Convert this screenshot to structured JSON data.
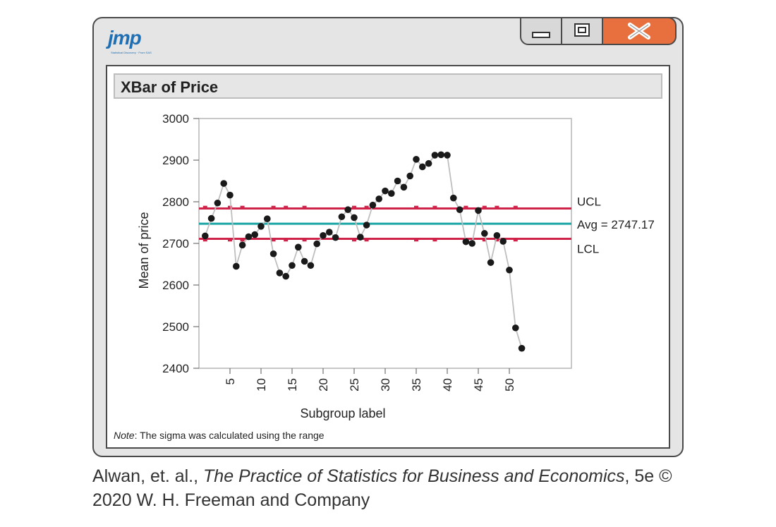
{
  "window": {
    "logo_text": "jmp",
    "logo_subtext": "Statistical Discovery · From SAS",
    "buttons": {
      "minimize_icon": "minimize-icon",
      "maximize_icon": "maximize-icon",
      "close_icon": "close-icon"
    },
    "close_color": "#e8703f"
  },
  "panel": {
    "title": "XBar of Price"
  },
  "note": {
    "label": "Note",
    "text": ": The sigma was calculated using the range"
  },
  "caption": {
    "line1_prefix": "Alwan, et. al., ",
    "line1_title": "The Practice of Statistics for Business and Economics",
    "line1_suffix": ", 5e ©",
    "line2": "2020 W. H. Freeman and Company"
  },
  "chart_data": {
    "type": "line",
    "title": "XBar of Price",
    "xlabel": "Subgroup label",
    "ylabel": "Mean of price",
    "ylim": [
      2400,
      3000
    ],
    "xlim": [
      0,
      60
    ],
    "yticks": [
      2400,
      2500,
      2600,
      2700,
      2800,
      2900,
      3000
    ],
    "xticks": [
      5,
      10,
      15,
      20,
      25,
      30,
      35,
      40,
      45,
      50
    ],
    "grid": false,
    "series": [
      {
        "x": [
          1,
          2,
          3,
          4,
          5,
          6,
          7,
          8,
          9,
          10,
          11,
          12,
          13,
          14,
          15,
          16,
          17,
          18,
          19,
          20,
          21,
          22,
          23,
          24,
          25,
          26,
          27,
          28,
          29,
          30,
          31,
          32,
          33,
          34,
          35,
          36,
          37,
          38,
          39,
          40,
          41,
          42,
          43,
          44,
          45,
          46,
          47,
          48,
          49,
          50,
          51,
          52
        ],
        "y": [
          2718,
          2760,
          2797,
          2844,
          2816,
          2645,
          2696,
          2716,
          2721,
          2741,
          2759,
          2675,
          2629,
          2621,
          2647,
          2691,
          2657,
          2647,
          2699,
          2719,
          2727,
          2714,
          2764,
          2781,
          2762,
          2715,
          2744,
          2792,
          2807,
          2826,
          2820,
          2850,
          2835,
          2862,
          2902,
          2884,
          2892,
          2912,
          2913,
          2912,
          2809,
          2781,
          2704,
          2700,
          2779,
          2724,
          2654,
          2719,
          2705,
          2636,
          2497,
          2448
        ],
        "color": "#1a1a1a",
        "line_color": "#bfbfbf"
      }
    ],
    "control_limits": {
      "ucl": {
        "label": "UCL",
        "value": 2784,
        "color": "#d0234a"
      },
      "avg": {
        "label": "Avg = 2747.17",
        "value": 2747.17,
        "color": "#1aa5a5"
      },
      "lcl": {
        "label": "LCL",
        "value": 2711,
        "color": "#d0234a"
      }
    }
  }
}
